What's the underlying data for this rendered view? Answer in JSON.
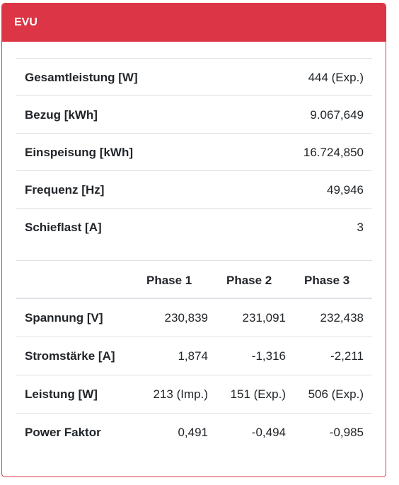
{
  "card": {
    "title": "EVU"
  },
  "summary": [
    {
      "label": "Gesamtleistung [W]",
      "value": "444 (Exp.)"
    },
    {
      "label": "Bezug [kWh]",
      "value": "9.067,649"
    },
    {
      "label": "Einspeisung [kWh]",
      "value": "16.724,850"
    },
    {
      "label": "Frequenz [Hz]",
      "value": "49,946"
    },
    {
      "label": "Schieflast [A]",
      "value": "3"
    }
  ],
  "phase_table": {
    "headers": [
      "Phase 1",
      "Phase 2",
      "Phase 3"
    ],
    "rows": [
      {
        "label": "Spannung [V]",
        "values": [
          "230,839",
          "231,091",
          "232,438"
        ]
      },
      {
        "label": "Stromstärke [A]",
        "values": [
          "1,874",
          "-1,316",
          "-2,211"
        ]
      },
      {
        "label": "Leistung [W]",
        "values": [
          "213 (Imp.)",
          "151 (Exp.)",
          "506 (Exp.)"
        ]
      },
      {
        "label": "Power Faktor",
        "values": [
          "0,491",
          "-0,494",
          "-0,985"
        ]
      }
    ]
  },
  "colors": {
    "header_bg": "#dc3545",
    "header_text": "#ffffff"
  }
}
